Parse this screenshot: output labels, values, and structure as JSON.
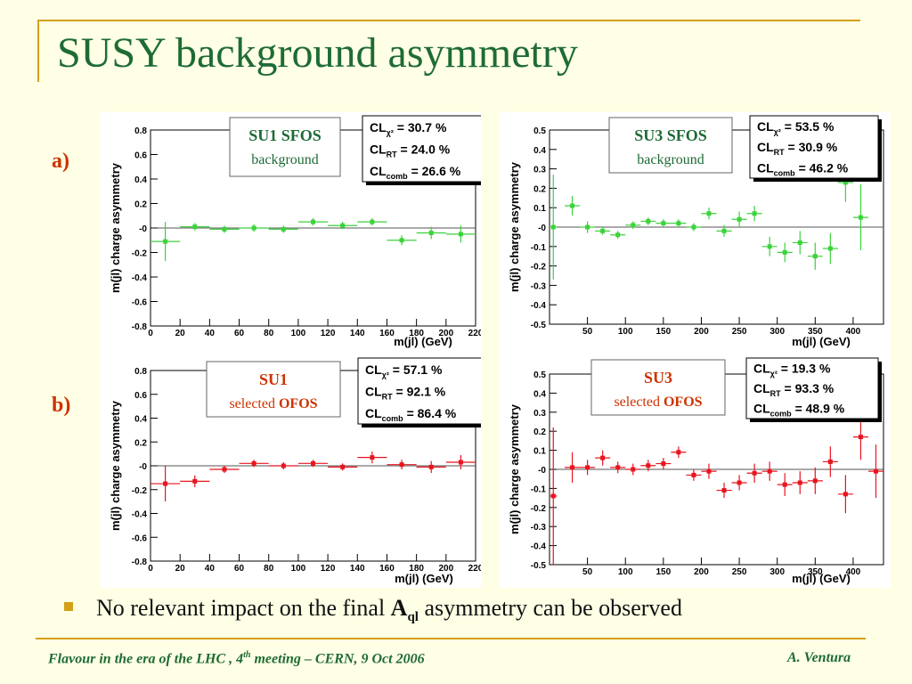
{
  "slide": {
    "title": "SUSY background asymmetry",
    "row_labels": [
      "a)",
      "b)"
    ],
    "conclusion": {
      "prefix": "No relevant impact on the final ",
      "symbol": "A",
      "subscript": "ql",
      "suffix": " asymmetry can be observed"
    },
    "footer": {
      "left_a": "Flavour in the era of  the LHC , 4",
      "left_sup": "th",
      "left_b": " meeting   –   CERN, 9 Oct 2006",
      "right": "A. Ventura"
    }
  },
  "colors": {
    "title": "#1E6B35",
    "accent": "#D4A017",
    "label_red": "#CC3300",
    "green_series": "#3CD23C",
    "red_series": "#E8141E"
  },
  "chart_data": [
    {
      "type": "scatter",
      "panel": "a-left",
      "box_title": "SU1 SFOS",
      "box_sub_plain": "background",
      "box_sub_bold": "",
      "box_style": "green",
      "cl": [
        {
          "main": "CL",
          "sub": "χ²",
          "value": " = 30.7 %"
        },
        {
          "main": "CL",
          "sub": "RT",
          "value": " = 24.0 %"
        },
        {
          "main": "CL",
          "sub": "comb",
          "value": " = 26.6 %"
        }
      ],
      "xlabel": "m(jl)  (GeV)",
      "ylabel": "m(jl) charge asymmetry",
      "xlim": [
        0,
        220
      ],
      "ylim": [
        -0.8,
        0.8
      ],
      "xticks": [
        0,
        20,
        40,
        60,
        80,
        100,
        120,
        140,
        160,
        180,
        200,
        220
      ],
      "yticks": [
        {
          "v": 0.8,
          "t": "0.8"
        },
        {
          "v": 0.6,
          "t": "0.6"
        },
        {
          "v": 0.4,
          "t": "0.4"
        },
        {
          "v": 0.2,
          "t": "0.2"
        },
        {
          "v": 0,
          "t": "-0"
        },
        {
          "v": -0.2,
          "t": "-0.2"
        },
        {
          "v": -0.4,
          "t": "-0.4"
        },
        {
          "v": -0.6,
          "t": "-0.6"
        },
        {
          "v": -0.8,
          "t": "-0.8"
        }
      ],
      "color": "#3CD23C",
      "points": [
        {
          "x": 10,
          "y": -0.11,
          "xe": 10,
          "ye": 0.16
        },
        {
          "x": 30,
          "y": 0.01,
          "xe": 10,
          "ye": 0.03
        },
        {
          "x": 50,
          "y": -0.01,
          "xe": 10,
          "ye": 0.03
        },
        {
          "x": 70,
          "y": 0.0,
          "xe": 10,
          "ye": 0.03
        },
        {
          "x": 90,
          "y": -0.01,
          "xe": 10,
          "ye": 0.03
        },
        {
          "x": 110,
          "y": 0.05,
          "xe": 10,
          "ye": 0.03
        },
        {
          "x": 130,
          "y": 0.02,
          "xe": 10,
          "ye": 0.03
        },
        {
          "x": 150,
          "y": 0.05,
          "xe": 10,
          "ye": 0.03
        },
        {
          "x": 170,
          "y": -0.1,
          "xe": 10,
          "ye": 0.04
        },
        {
          "x": 190,
          "y": -0.04,
          "xe": 10,
          "ye": 0.05
        },
        {
          "x": 210,
          "y": -0.05,
          "xe": 10,
          "ye": 0.07
        }
      ]
    },
    {
      "type": "scatter",
      "panel": "a-right",
      "box_title": "SU3 SFOS",
      "box_sub_plain": "background",
      "box_sub_bold": "",
      "box_style": "green",
      "cl": [
        {
          "main": "CL",
          "sub": "χ²",
          "value": " = 53.5 %"
        },
        {
          "main": "CL",
          "sub": "RT",
          "value": " = 30.9 %"
        },
        {
          "main": "CL",
          "sub": "comb",
          "value": " = 46.2 %"
        }
      ],
      "xlabel": "m(jl)  (GeV)",
      "ylabel": "m(jl) charge asymmetry",
      "xlim": [
        0,
        440
      ],
      "ylim": [
        -0.5,
        0.5
      ],
      "xticks": [
        50,
        100,
        150,
        200,
        250,
        300,
        350,
        400
      ],
      "yticks": [
        {
          "v": 0.5,
          "t": "0.5"
        },
        {
          "v": 0.4,
          "t": "0.4"
        },
        {
          "v": 0.3,
          "t": "0.3"
        },
        {
          "v": 0.2,
          "t": "0.2"
        },
        {
          "v": 0.1,
          "t": "0.1"
        },
        {
          "v": 0,
          "t": "-0"
        },
        {
          "v": -0.1,
          "t": "-0.1"
        },
        {
          "v": -0.2,
          "t": "-0.2"
        },
        {
          "v": -0.3,
          "t": "-0.3"
        },
        {
          "v": -0.4,
          "t": "-0.4"
        },
        {
          "v": -0.5,
          "t": "-0.5"
        }
      ],
      "color": "#3CD23C",
      "points": [
        {
          "x": 5,
          "y": 0.0,
          "xe": 5,
          "ye": 0.27
        },
        {
          "x": 30,
          "y": 0.11,
          "xe": 10,
          "ye": 0.05
        },
        {
          "x": 50,
          "y": 0.0,
          "xe": 10,
          "ye": 0.03
        },
        {
          "x": 70,
          "y": -0.02,
          "xe": 10,
          "ye": 0.02
        },
        {
          "x": 90,
          "y": -0.04,
          "xe": 10,
          "ye": 0.02
        },
        {
          "x": 110,
          "y": 0.01,
          "xe": 10,
          "ye": 0.02
        },
        {
          "x": 130,
          "y": 0.03,
          "xe": 10,
          "ye": 0.02
        },
        {
          "x": 150,
          "y": 0.02,
          "xe": 10,
          "ye": 0.02
        },
        {
          "x": 170,
          "y": 0.02,
          "xe": 10,
          "ye": 0.02
        },
        {
          "x": 190,
          "y": 0.0,
          "xe": 10,
          "ye": 0.02
        },
        {
          "x": 210,
          "y": 0.07,
          "xe": 10,
          "ye": 0.03
        },
        {
          "x": 230,
          "y": -0.02,
          "xe": 10,
          "ye": 0.03
        },
        {
          "x": 250,
          "y": 0.04,
          "xe": 10,
          "ye": 0.04
        },
        {
          "x": 270,
          "y": 0.07,
          "xe": 10,
          "ye": 0.04
        },
        {
          "x": 290,
          "y": -0.1,
          "xe": 10,
          "ye": 0.05
        },
        {
          "x": 310,
          "y": -0.13,
          "xe": 10,
          "ye": 0.05
        },
        {
          "x": 330,
          "y": -0.08,
          "xe": 10,
          "ye": 0.06
        },
        {
          "x": 350,
          "y": -0.15,
          "xe": 10,
          "ye": 0.07
        },
        {
          "x": 370,
          "y": -0.11,
          "xe": 10,
          "ye": 0.08
        },
        {
          "x": 390,
          "y": 0.23,
          "xe": 10,
          "ye": 0.1
        },
        {
          "x": 410,
          "y": 0.05,
          "xe": 10,
          "ye": 0.17
        }
      ]
    },
    {
      "type": "scatter",
      "panel": "b-left",
      "box_title": "SU1",
      "box_sub_plain": "selected ",
      "box_sub_bold": "OFOS",
      "box_style": "red",
      "cl": [
        {
          "main": "CL",
          "sub": "χ²",
          "value": " = 57.1 %"
        },
        {
          "main": "CL",
          "sub": "RT",
          "value": " = 92.1 %"
        },
        {
          "main": "CL",
          "sub": "comb",
          "value": " = 86.4 %"
        }
      ],
      "xlabel": "m(jl)   (GeV)",
      "ylabel": "m(jl) charge asymmetry",
      "xlim": [
        0,
        220
      ],
      "ylim": [
        -0.8,
        0.8
      ],
      "xticks": [
        0,
        20,
        40,
        60,
        80,
        100,
        120,
        140,
        160,
        180,
        200,
        220
      ],
      "yticks": [
        {
          "v": 0.8,
          "t": "0.8"
        },
        {
          "v": 0.6,
          "t": "0.6"
        },
        {
          "v": 0.4,
          "t": "0.4"
        },
        {
          "v": 0.2,
          "t": "0.2"
        },
        {
          "v": 0,
          "t": "-0"
        },
        {
          "v": -0.2,
          "t": "-0.2"
        },
        {
          "v": -0.4,
          "t": "-0.4"
        },
        {
          "v": -0.6,
          "t": "-0.6"
        },
        {
          "v": -0.8,
          "t": "-0.8"
        }
      ],
      "color": "#E8141E",
      "points": [
        {
          "x": 10,
          "y": -0.15,
          "xe": 10,
          "ye": 0.15
        },
        {
          "x": 30,
          "y": -0.13,
          "xe": 10,
          "ye": 0.05
        },
        {
          "x": 50,
          "y": -0.03,
          "xe": 10,
          "ye": 0.03
        },
        {
          "x": 70,
          "y": 0.02,
          "xe": 10,
          "ye": 0.03
        },
        {
          "x": 90,
          "y": 0.0,
          "xe": 10,
          "ye": 0.03
        },
        {
          "x": 110,
          "y": 0.02,
          "xe": 10,
          "ye": 0.03
        },
        {
          "x": 130,
          "y": -0.01,
          "xe": 10,
          "ye": 0.03
        },
        {
          "x": 150,
          "y": 0.07,
          "xe": 10,
          "ye": 0.05
        },
        {
          "x": 170,
          "y": 0.01,
          "xe": 10,
          "ye": 0.04
        },
        {
          "x": 190,
          "y": -0.01,
          "xe": 10,
          "ye": 0.05
        },
        {
          "x": 210,
          "y": 0.03,
          "xe": 10,
          "ye": 0.06
        }
      ]
    },
    {
      "type": "scatter",
      "panel": "b-right",
      "box_title": "SU3",
      "box_sub_plain": "selected ",
      "box_sub_bold": "OFOS",
      "box_style": "red",
      "cl": [
        {
          "main": "CL",
          "sub": "χ²",
          "value": " = 19.3 %"
        },
        {
          "main": "CL",
          "sub": "RT",
          "value": " = 93.3 %"
        },
        {
          "main": "CL",
          "sub": "comb",
          "value": " = 48.9 %"
        }
      ],
      "xlabel": "m(jl)  (GeV)",
      "ylabel": "m(jl) charge asymmetry",
      "xlim": [
        0,
        440
      ],
      "ylim": [
        -0.5,
        0.5
      ],
      "xticks": [
        50,
        100,
        150,
        200,
        250,
        300,
        350,
        400
      ],
      "yticks": [
        {
          "v": 0.5,
          "t": "0.5"
        },
        {
          "v": 0.4,
          "t": "0.4"
        },
        {
          "v": 0.3,
          "t": "0.3"
        },
        {
          "v": 0.2,
          "t": "0.2"
        },
        {
          "v": 0.1,
          "t": "0.1"
        },
        {
          "v": 0,
          "t": "-0"
        },
        {
          "v": -0.1,
          "t": "-0.1"
        },
        {
          "v": -0.2,
          "t": "-0.2"
        },
        {
          "v": -0.3,
          "t": "-0.3"
        },
        {
          "v": -0.4,
          "t": "-0.4"
        },
        {
          "v": -0.5,
          "t": "-0.5"
        }
      ],
      "color": "#E8141E",
      "points": [
        {
          "x": 5,
          "y": -0.14,
          "xe": 5,
          "ye": 0.36
        },
        {
          "x": 30,
          "y": 0.01,
          "xe": 10,
          "ye": 0.08
        },
        {
          "x": 50,
          "y": 0.01,
          "xe": 10,
          "ye": 0.04
        },
        {
          "x": 70,
          "y": 0.06,
          "xe": 10,
          "ye": 0.04
        },
        {
          "x": 90,
          "y": 0.01,
          "xe": 10,
          "ye": 0.03
        },
        {
          "x": 110,
          "y": 0.0,
          "xe": 10,
          "ye": 0.03
        },
        {
          "x": 130,
          "y": 0.02,
          "xe": 10,
          "ye": 0.03
        },
        {
          "x": 150,
          "y": 0.03,
          "xe": 10,
          "ye": 0.03
        },
        {
          "x": 170,
          "y": 0.09,
          "xe": 10,
          "ye": 0.03
        },
        {
          "x": 190,
          "y": -0.03,
          "xe": 10,
          "ye": 0.03
        },
        {
          "x": 210,
          "y": -0.01,
          "xe": 10,
          "ye": 0.04
        },
        {
          "x": 230,
          "y": -0.11,
          "xe": 10,
          "ye": 0.04
        },
        {
          "x": 250,
          "y": -0.07,
          "xe": 10,
          "ye": 0.04
        },
        {
          "x": 270,
          "y": -0.02,
          "xe": 10,
          "ye": 0.05
        },
        {
          "x": 290,
          "y": -0.01,
          "xe": 10,
          "ye": 0.05
        },
        {
          "x": 310,
          "y": -0.08,
          "xe": 10,
          "ye": 0.06
        },
        {
          "x": 330,
          "y": -0.07,
          "xe": 10,
          "ye": 0.06
        },
        {
          "x": 350,
          "y": -0.06,
          "xe": 10,
          "ye": 0.07
        },
        {
          "x": 370,
          "y": 0.04,
          "xe": 10,
          "ye": 0.08
        },
        {
          "x": 390,
          "y": -0.13,
          "xe": 10,
          "ye": 0.1
        },
        {
          "x": 410,
          "y": 0.17,
          "xe": 10,
          "ye": 0.12
        },
        {
          "x": 430,
          "y": -0.01,
          "xe": 10,
          "ye": 0.14
        }
      ]
    }
  ]
}
